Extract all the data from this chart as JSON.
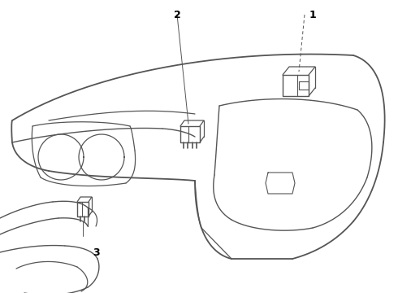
{
  "background_color": "#ffffff",
  "line_color": "#555555",
  "label_color": "#000000",
  "figsize": [
    4.9,
    3.6
  ],
  "dpi": 100,
  "labels": {
    "1": [
      385,
      18
    ],
    "2": [
      218,
      18
    ],
    "3": [
      118,
      310
    ]
  }
}
